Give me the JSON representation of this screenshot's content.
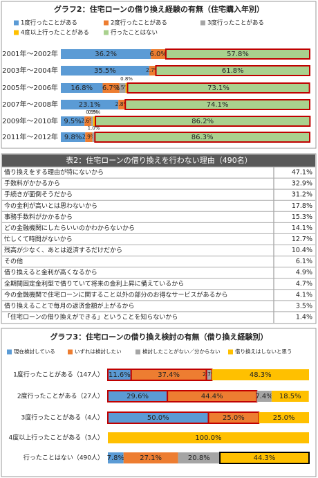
{
  "chart_data": [
    {
      "type": "stacked-bar",
      "title": "グラフ2：住宅ローンの借り換え経験の有無（住宅購入年別）",
      "categories": [
        "2001年～2002年",
        "2003年～2004年",
        "2005年～2006年",
        "2007年～2008年",
        "2009年～2010年",
        "2011年～2012年"
      ],
      "xlim": [
        0,
        100
      ],
      "series": [
        {
          "name": "1度行ったことがある",
          "color": "#5b9bd5",
          "values": [
            36.2,
            35.5,
            16.8,
            23.1,
            9.5,
            9.8
          ],
          "value_labels": [
            "36.2%",
            "35.5%",
            "16.8%",
            "23.1%",
            "9.5%",
            "9.8%"
          ]
        },
        {
          "name": "2度行ったことがある",
          "color": "#ed7d31",
          "values": [
            6.0,
            2.7,
            6.7,
            2.8,
            2.6,
            2.9
          ],
          "value_labels": [
            "6.0%",
            "2.7%",
            "6.7%",
            "2.8%",
            "2.6%",
            "2.9%"
          ]
        },
        {
          "name": "3度行ったことがある",
          "color": "#a5a5a5",
          "values": [
            null,
            null,
            2.5,
            null,
            0.9,
            1.0
          ],
          "value_labels": [
            null,
            null,
            "2.5%",
            null,
            "0.9%",
            "1.0%"
          ]
        },
        {
          "name": "4度以上行ったことがある",
          "color": "#ffc000",
          "values": [
            null,
            null,
            0.8,
            null,
            0.9,
            null
          ],
          "value_labels": [
            null,
            null,
            "0.8%",
            null,
            "0.9%",
            null
          ]
        },
        {
          "name": "行ったことはない",
          "color": "#a9d18e",
          "values": [
            57.8,
            61.8,
            73.1,
            74.1,
            86.2,
            86.3
          ],
          "value_labels": [
            "57.8%",
            "61.8%",
            "73.1%",
            "74.1%",
            "86.2%",
            "86.3%"
          ],
          "outline": [
            "#c00000",
            "#c00000",
            "#c00000",
            "#c00000",
            "#c00000",
            "#c00000"
          ]
        }
      ]
    },
    {
      "type": "stacked-bar",
      "title": "グラフ3：住宅ローンの借り換え検討の有無（借り換え経験別）",
      "categories": [
        "1度行ったことがある（147人）",
        "2度行ったことがある（27人）",
        "3度行ったことがある（4人）",
        "4度以上行ったことがある（3人）",
        "行ったことはない（490人）"
      ],
      "xlim": [
        0,
        100
      ],
      "series": [
        {
          "name": "現在検討している",
          "color": "#5b9bd5",
          "values": [
            11.6,
            29.6,
            50.0,
            null,
            7.8
          ],
          "value_labels": [
            "11.6%",
            "29.6%",
            "50.0%",
            null,
            "7.8%"
          ],
          "outline": [
            "#c00000",
            "#c00000",
            "#c00000",
            null,
            null
          ]
        },
        {
          "name": "いずれは検討したい",
          "color": "#ed7d31",
          "values": [
            37.4,
            44.4,
            25.0,
            null,
            27.1
          ],
          "value_labels": [
            "37.4%",
            "44.4%",
            "25.0%",
            null,
            "27.1%"
          ],
          "outline": [
            "#c00000",
            "#c00000",
            "#c00000",
            null,
            null
          ]
        },
        {
          "name": "検討したことがない／分からない",
          "color": "#a5a5a5",
          "values": [
            2.7,
            7.4,
            null,
            null,
            20.8
          ],
          "value_labels": [
            "2.7%",
            "7.4%",
            null,
            null,
            "20.8%"
          ],
          "outline": [
            "#c00000",
            null,
            null,
            null,
            null
          ]
        },
        {
          "name": "借り換えはしないと思う",
          "color": "#ffc000",
          "values": [
            48.3,
            18.5,
            25.0,
            100.0,
            44.3
          ],
          "value_labels": [
            "48.3%",
            "18.5%",
            "25.0%",
            "100.0%",
            "44.3%"
          ],
          "outline": [
            null,
            null,
            null,
            null,
            "#000000"
          ]
        }
      ]
    }
  ],
  "table": {
    "title": "表2：住宅ローンの借り換えを行わない理由（490名）",
    "rows": [
      [
        "借り換えをする理由が特にないから",
        "47.1%"
      ],
      [
        "手数料がかかるから",
        "32.9%"
      ],
      [
        "手続きが面倒そうだから",
        "31.2%"
      ],
      [
        "今の金利が高いとは思わないから",
        "17.8%"
      ],
      [
        "事務手数料がかかるから",
        "15.3%"
      ],
      [
        "どの金融機関にしたらいいのかわからないから",
        "14.1%"
      ],
      [
        "忙しくて時間がないから",
        "12.7%"
      ],
      [
        "残高が少なく、あとは返済するだけだから",
        "10.4%"
      ],
      [
        "その他",
        "6.1%"
      ],
      [
        "借り換えると金利が高くなるから",
        "4.9%"
      ],
      [
        "全期間固定金利型で借りていて将来の金利上昇に備えているから",
        "4.7%"
      ],
      [
        "今の金融機関で住宅ローンに関すること以外の部分のお得なサービスがあるから",
        "4.1%"
      ],
      [
        "借り換えることで毎月の返済金額が上がるから",
        "3.5%"
      ],
      [
        "「住宅ローンの借り換えができる」ということを知らないから",
        "1.4%"
      ]
    ]
  }
}
